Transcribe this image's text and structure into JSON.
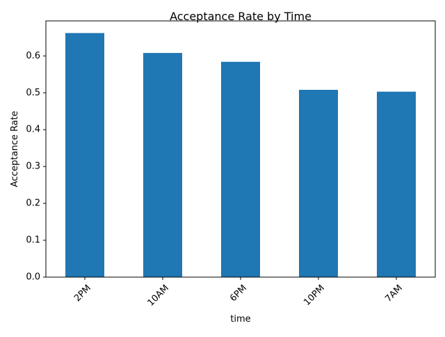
{
  "chart_data": {
    "type": "bar",
    "title": "Acceptance Rate by Time",
    "xlabel": "time",
    "ylabel": "Acceptance Rate",
    "categories": [
      "2PM",
      "10AM",
      "6PM",
      "10PM",
      "7AM"
    ],
    "values": [
      0.662,
      0.608,
      0.584,
      0.508,
      0.503
    ],
    "ylim": [
      0,
      0.695
    ],
    "yticks": [
      0.0,
      0.1,
      0.2,
      0.3,
      0.4,
      0.5,
      0.6
    ],
    "ytick_labels": [
      "0.0",
      "0.1",
      "0.2",
      "0.3",
      "0.4",
      "0.5",
      "0.6"
    ],
    "bar_color": "#1f77b4",
    "grid": false,
    "xtick_rotation": "45 degrees"
  }
}
